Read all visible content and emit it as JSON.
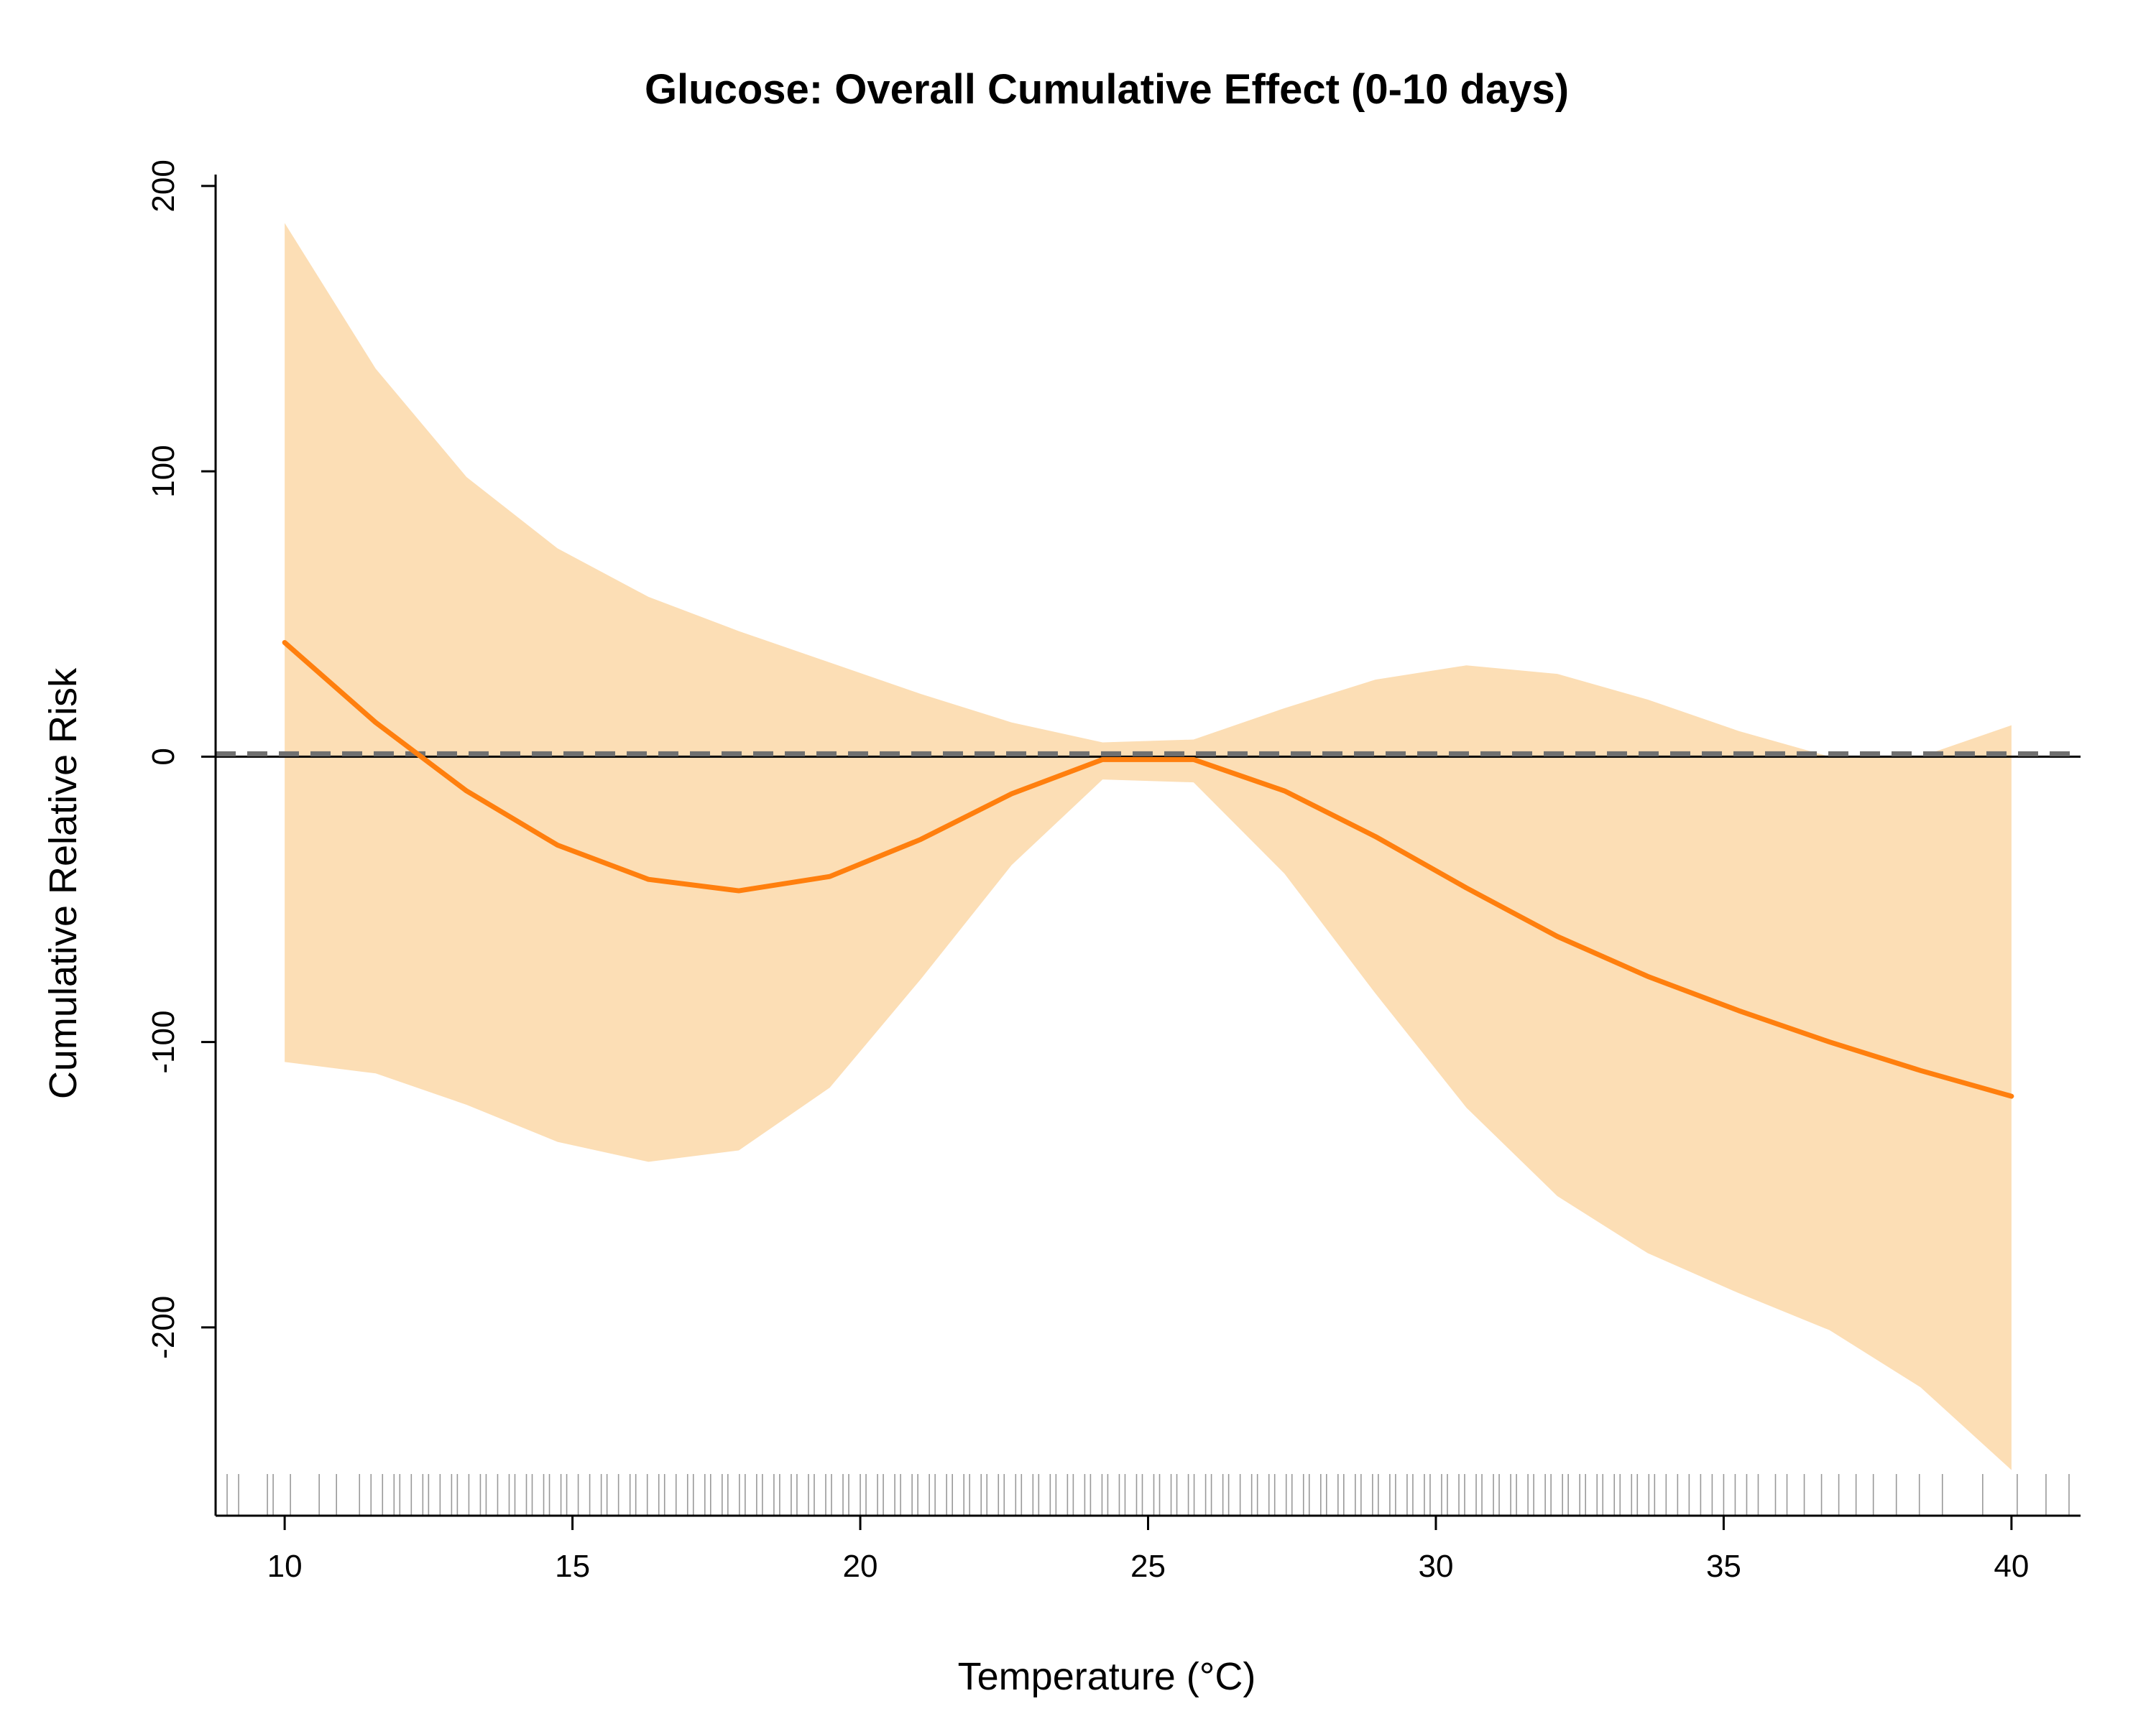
{
  "chart_data": {
    "type": "line",
    "title": "Glucose: Overall Cumulative Effect (0-10 days)",
    "xlabel": "Temperature (°C)",
    "ylabel": "Cumulative Relative Risk",
    "xlim": [
      8.8,
      41.2
    ],
    "ylim": [
      -266,
      204
    ],
    "x_ticks": [
      10,
      15,
      20,
      25,
      30,
      35,
      40
    ],
    "x_tick_labels": [
      "10",
      "15",
      "20",
      "25",
      "30",
      "35",
      "40"
    ],
    "y_ticks": [
      -200,
      -100,
      0,
      100,
      200
    ],
    "y_tick_labels": [
      "-200",
      "-100",
      "0",
      "100",
      "200"
    ],
    "grid": false,
    "legend": "none",
    "reference_lines": [
      {
        "style": "solid",
        "color": "#000000",
        "y": 0
      },
      {
        "style": "dashed",
        "color": "#707070",
        "y": 1
      }
    ],
    "colors": {
      "line": "#ff7f0e",
      "band": "#fcdeb5",
      "rug": "#555555"
    },
    "series": [
      {
        "x": [
          10,
          11.58,
          13.16,
          14.74,
          16.32,
          17.89,
          19.47,
          21.05,
          22.63,
          24.21,
          25.79,
          27.37,
          28.95,
          30.53,
          32.11,
          33.68,
          35.26,
          36.84,
          38.42,
          40
        ],
        "values": [
          40,
          12,
          -12,
          -31,
          -43,
          -47,
          -42,
          -29,
          -13,
          -1,
          -1,
          -12,
          -28,
          -46,
          -63,
          -77,
          -89,
          -100,
          -110,
          -119
        ],
        "lower": [
          -107,
          -111,
          -122,
          -135,
          -142,
          -138,
          -116,
          -78,
          -38,
          -8,
          -9,
          -41,
          -83,
          -123,
          -154,
          -174,
          -188,
          -201,
          -221,
          -250
        ],
        "upper": [
          187,
          136,
          98,
          73,
          56,
          44,
          33,
          22,
          12,
          5,
          6,
          17,
          27,
          32,
          29,
          20,
          9,
          0,
          0,
          11
        ]
      }
    ],
    "rug_x": [
      9.0,
      9.2,
      9.7,
      9.8,
      10.1,
      10.6,
      10.9,
      11.3,
      11.5,
      11.7,
      11.9,
      12.0,
      12.2,
      12.4,
      12.5,
      12.7,
      12.9,
      13.0,
      13.2,
      13.4,
      13.5,
      13.7,
      13.9,
      14.0,
      14.2,
      14.3,
      14.5,
      14.6,
      14.8,
      14.9,
      15.1,
      15.3,
      15.5,
      15.6,
      15.8,
      16.0,
      16.1,
      16.3,
      16.5,
      16.6,
      16.8,
      17.0,
      17.1,
      17.3,
      17.4,
      17.6,
      17.7,
      17.9,
      18.0,
      18.2,
      18.3,
      18.5,
      18.6,
      18.8,
      18.9,
      19.1,
      19.2,
      19.4,
      19.5,
      19.7,
      19.8,
      20.0,
      20.1,
      20.3,
      20.4,
      20.6,
      20.7,
      20.9,
      21.0,
      21.2,
      21.3,
      21.5,
      21.6,
      21.8,
      21.9,
      22.1,
      22.2,
      22.4,
      22.5,
      22.7,
      22.8,
      23.0,
      23.1,
      23.3,
      23.4,
      23.6,
      23.7,
      23.9,
      24.0,
      24.2,
      24.3,
      24.5,
      24.6,
      24.8,
      24.9,
      25.1,
      25.2,
      25.4,
      25.5,
      25.7,
      25.8,
      26.0,
      26.1,
      26.3,
      26.4,
      26.6,
      26.8,
      26.9,
      27.1,
      27.2,
      27.4,
      27.5,
      27.7,
      27.8,
      28.0,
      28.1,
      28.3,
      28.4,
      28.6,
      28.7,
      28.9,
      29.0,
      29.2,
      29.3,
      29.5,
      29.6,
      29.8,
      29.9,
      30.1,
      30.2,
      30.4,
      30.5,
      30.7,
      30.8,
      31.0,
      31.1,
      31.3,
      31.4,
      31.6,
      31.7,
      31.9,
      32.0,
      32.2,
      32.3,
      32.5,
      32.6,
      32.8,
      32.9,
      33.1,
      33.2,
      33.4,
      33.5,
      33.7,
      33.8,
      34.0,
      34.2,
      34.4,
      34.6,
      34.8,
      35.0,
      35.2,
      35.4,
      35.6,
      35.9,
      36.1,
      36.4,
      36.7,
      37.0,
      37.3,
      37.6,
      38.0,
      38.4,
      38.8,
      39.5,
      40.1,
      40.6,
      41.0
    ]
  }
}
